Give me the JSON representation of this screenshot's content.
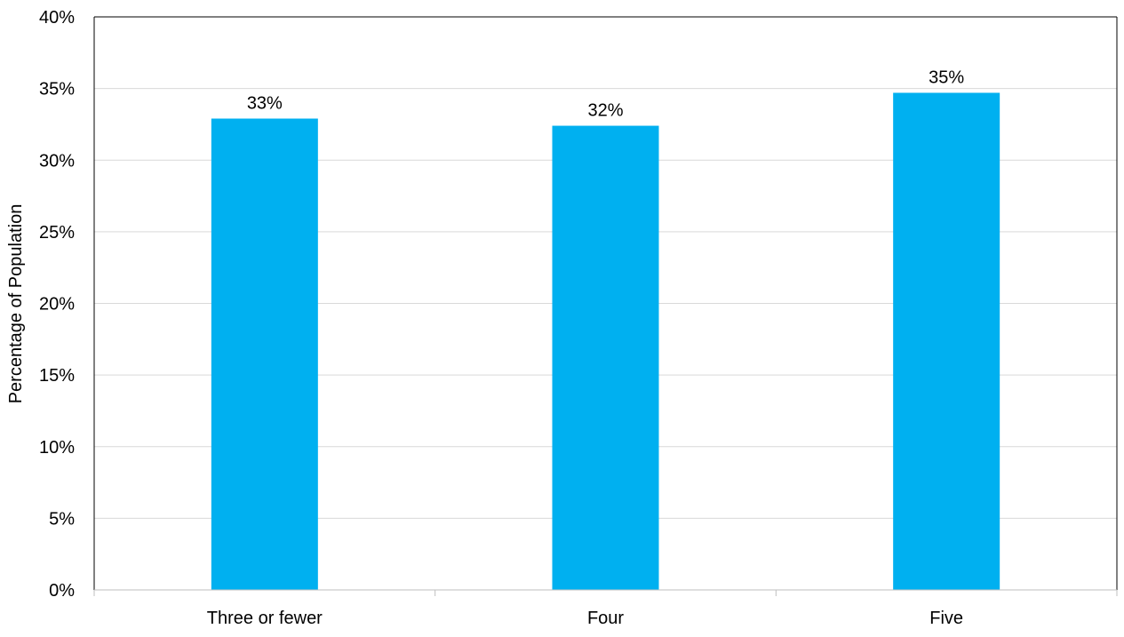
{
  "chart_data": {
    "type": "bar",
    "title": "",
    "xlabel": "",
    "ylabel": "Percentage of Population",
    "categories": [
      "Three or fewer",
      "Four",
      "Five"
    ],
    "values": [
      32.9,
      32.4,
      34.7
    ],
    "data_labels": [
      "33%",
      "32%",
      "35%"
    ],
    "ylim": [
      0,
      40
    ],
    "yticks": [
      0,
      5,
      10,
      15,
      20,
      25,
      30,
      35,
      40
    ],
    "ytick_labels": [
      "0%",
      "5%",
      "10%",
      "15%",
      "20%",
      "25%",
      "30%",
      "35%",
      "40%"
    ],
    "grid": true,
    "legend": "none",
    "colors": {
      "bar": "#00B0F0",
      "grid": "#D9D9D9",
      "axis": "#BFBFBF",
      "frame": "#000000"
    }
  }
}
